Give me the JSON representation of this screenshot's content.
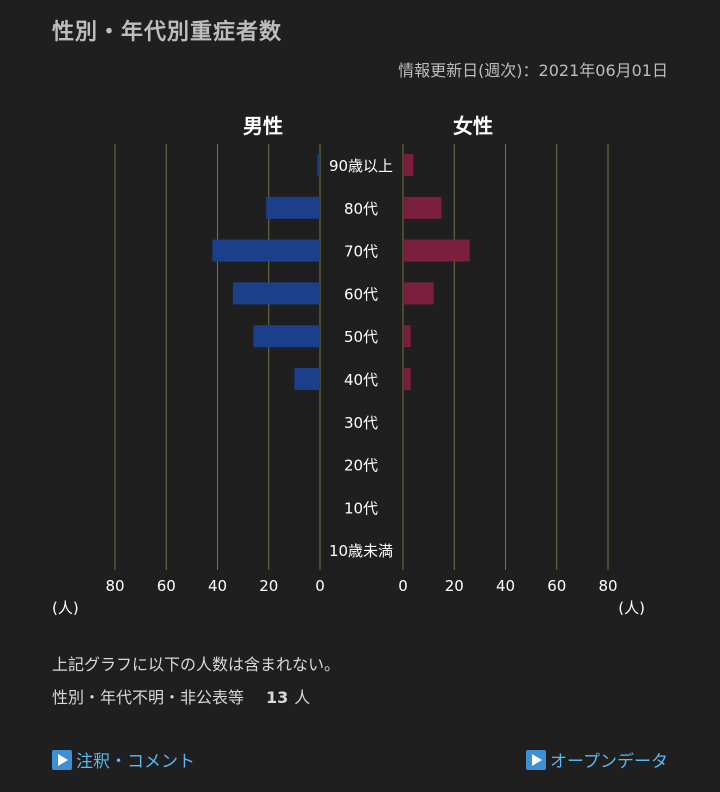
{
  "header": {
    "title": "性別・年代別重症者数",
    "update_label": "情報更新日(週次)：2021年06月01日"
  },
  "colors": {
    "male": "#1c3f8c",
    "female": "#7a1f3d",
    "gridline": "#7a7248",
    "background": "#1f1f1f"
  },
  "chart_data": {
    "type": "bar",
    "orientation": "horizontal-pyramid",
    "categories": [
      "90歳以上",
      "80代",
      "70代",
      "60代",
      "50代",
      "40代",
      "30代",
      "20代",
      "10代",
      "10歳未満"
    ],
    "series": [
      {
        "name": "男性",
        "values": [
          1,
          21,
          42,
          34,
          26,
          10,
          0,
          0,
          0,
          0
        ]
      },
      {
        "name": "女性",
        "values": [
          4,
          15,
          26,
          12,
          3,
          3,
          0,
          0,
          0,
          0
        ]
      }
    ],
    "xlim": [
      0,
      80
    ],
    "ticks": [
      "80",
      "60",
      "40",
      "20",
      "0"
    ],
    "ticks_right": [
      "0",
      "20",
      "40",
      "60",
      "80"
    ],
    "unit_label": "(人)",
    "grid": true
  },
  "notes": {
    "line1": "上記グラフに以下の人数は含まれない。",
    "line2_label": "性別・年代不明・非公表等",
    "line2_count": "13",
    "line2_unit": "人"
  },
  "links": {
    "left_label": "注釈・コメント",
    "right_label": "オープンデータ"
  }
}
